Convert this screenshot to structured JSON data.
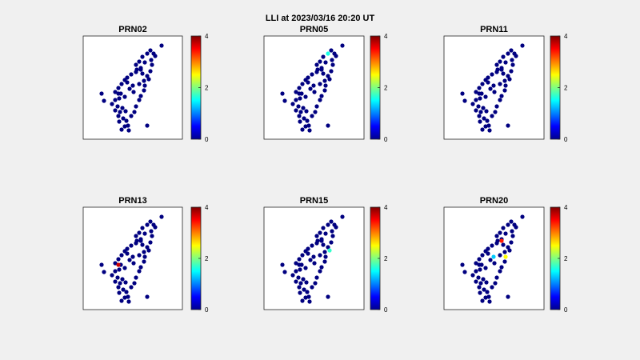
{
  "figure": {
    "title": "LLI at 2023/03/16 20:20 UT"
  },
  "chart_data": [
    {
      "type": "scatter",
      "title": "PRN02",
      "colorbar": {
        "min": 0,
        "max": 4,
        "ticks": [
          "0",
          "2",
          "4"
        ],
        "colormap": "jet"
      },
      "highlights": []
    },
    {
      "type": "scatter",
      "title": "PRN05",
      "colorbar": {
        "min": 0,
        "max": 4,
        "ticks": [
          "0",
          "2",
          "4"
        ],
        "colormap": "jet"
      },
      "highlights": [
        {
          "station": 4,
          "value": 1.6
        }
      ]
    },
    {
      "type": "scatter",
      "title": "PRN11",
      "colorbar": {
        "min": 0,
        "max": 4,
        "ticks": [
          "0",
          "2",
          "4"
        ],
        "colormap": "jet"
      },
      "highlights": []
    },
    {
      "type": "scatter",
      "title": "PRN13",
      "colorbar": {
        "min": 0,
        "max": 4,
        "ticks": [
          "0",
          "2",
          "4"
        ],
        "colormap": "jet"
      },
      "highlights": [
        {
          "station": 52,
          "value": 3.7
        }
      ]
    },
    {
      "type": "scatter",
      "title": "PRN15",
      "colorbar": {
        "min": 0,
        "max": 4,
        "ticks": [
          "0",
          "2",
          "4"
        ],
        "colormap": "jet"
      },
      "highlights": [
        {
          "station": 51,
          "value": 1.7
        }
      ]
    },
    {
      "type": "scatter",
      "title": "PRN20",
      "colorbar": {
        "min": 0,
        "max": 4,
        "ticks": [
          "0",
          "2",
          "4"
        ],
        "colormap": "jet"
      },
      "highlights": [
        {
          "station": 53,
          "value": 3.4
        },
        {
          "station": 50,
          "value": 2.5
        },
        {
          "station": 54,
          "value": 1.3
        }
      ]
    }
  ]
}
